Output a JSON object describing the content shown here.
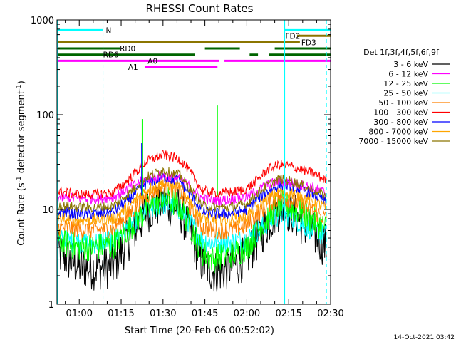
{
  "chart_data": {
    "type": "line",
    "title": "RHESSI Count Rates",
    "xlabel": "Start Time (20-Feb-06 00:52:02)",
    "ylabel": "Count Rate (s⁻¹ detector segment⁻¹)",
    "ylabel_parts": {
      "main": "Count Rate (s",
      "sup1": "-1",
      "mid": " detector segment",
      "sup2": "-1",
      "end": ")"
    },
    "y_scale": "log",
    "ylim": [
      1,
      1000
    ],
    "xlim": [
      52.03,
      150
    ],
    "x_ticks": [
      {
        "value": 60,
        "label": "01:00"
      },
      {
        "value": 75,
        "label": "01:15"
      },
      {
        "value": 90,
        "label": "01:30"
      },
      {
        "value": 105,
        "label": "01:45"
      },
      {
        "value": 120,
        "label": "02:00"
      },
      {
        "value": 135,
        "label": "02:15"
      },
      {
        "value": 150,
        "label": "02:30"
      }
    ],
    "y_ticks": [
      {
        "value": 1,
        "label": "1"
      },
      {
        "value": 10,
        "label": "10"
      },
      {
        "value": 100,
        "label": "100"
      },
      {
        "value": 1000,
        "label": "1000"
      }
    ],
    "legend_title": "Det 1f,3f,4f,5f,6f,9f",
    "legend_position": "right",
    "series": [
      {
        "name": "3 - 6 keV",
        "color": "#000000",
        "x": [
          52.03,
          60,
          66,
          72,
          78,
          84,
          90,
          96,
          100,
          104,
          108,
          112,
          116,
          120,
          124,
          128,
          132,
          136,
          140,
          144,
          148
        ],
        "values": [
          3.5,
          2.5,
          2.4,
          2.5,
          5,
          9.5,
          12,
          10,
          5.5,
          2.7,
          2.2,
          2.3,
          2.6,
          3.2,
          5,
          7.5,
          10.5,
          9.5,
          7,
          5.5,
          4.2
        ]
      },
      {
        "name": "6 - 12 keV",
        "color": "#ff00ff",
        "x": [
          52.03,
          60,
          66,
          72,
          78,
          84,
          90,
          96,
          100,
          104,
          108,
          112,
          116,
          120,
          124,
          128,
          132,
          136,
          140,
          144,
          148
        ],
        "values": [
          13.5,
          13,
          13,
          13.5,
          17,
          21,
          23,
          21,
          17,
          13,
          12.5,
          12.5,
          13,
          13.5,
          16,
          18.5,
          20,
          19,
          18,
          17,
          15
        ]
      },
      {
        "name": "12 - 25 keV",
        "color": "#00ff00",
        "x": [
          52.03,
          60,
          66,
          72,
          78,
          84,
          90,
          96,
          100,
          104,
          108,
          112,
          116,
          120,
          124,
          128,
          132,
          136,
          140,
          144,
          148
        ],
        "values": [
          4.5,
          4,
          4,
          4.2,
          6.5,
          10,
          13,
          11,
          6.5,
          3.5,
          3,
          3.2,
          3.5,
          4,
          6,
          8.5,
          11.5,
          10.5,
          9,
          7.5,
          6.5
        ]
      },
      {
        "name": "25 - 50 keV",
        "color": "#00ffff",
        "x": [
          52.03,
          60,
          66,
          72,
          78,
          84,
          90,
          96,
          100,
          104,
          108,
          112,
          116,
          120,
          124,
          128,
          132,
          136,
          140,
          144,
          148
        ],
        "values": [
          4.8,
          4.5,
          4.5,
          4.8,
          6.5,
          9.5,
          11.5,
          10,
          7,
          4.8,
          4.5,
          4.5,
          4.6,
          4.8,
          6,
          7.5,
          9,
          8.5,
          7,
          6,
          5.2
        ]
      },
      {
        "name": "50 - 100 keV",
        "color": "#ff8000",
        "x": [
          52.03,
          60,
          66,
          72,
          78,
          84,
          90,
          96,
          100,
          104,
          108,
          112,
          116,
          120,
          124,
          128,
          132,
          136,
          140,
          144,
          148
        ],
        "values": [
          6.5,
          6.2,
          6,
          6.3,
          9,
          14,
          17.5,
          15,
          10,
          6.5,
          6,
          6,
          6.2,
          6.8,
          9,
          11.5,
          13.5,
          12.5,
          11,
          9.5,
          8.2
        ]
      },
      {
        "name": "100 - 300 keV",
        "color": "#ff0000",
        "x": [
          52.03,
          60,
          66,
          72,
          78,
          84,
          90,
          96,
          100,
          104,
          108,
          112,
          116,
          120,
          124,
          128,
          132,
          136,
          140,
          144,
          148
        ],
        "values": [
          15.5,
          14.5,
          14.5,
          15,
          21,
          32,
          38,
          34,
          24,
          16,
          15,
          15,
          15.5,
          16.5,
          21,
          27,
          30,
          28.5,
          26,
          24,
          20.5
        ]
      },
      {
        "name": "300 - 800 keV",
        "color": "#0000ff",
        "x": [
          52.03,
          60,
          66,
          72,
          78,
          84,
          90,
          96,
          100,
          104,
          108,
          112,
          116,
          120,
          124,
          128,
          132,
          136,
          140,
          144,
          148
        ],
        "values": [
          9.5,
          9,
          9,
          9.3,
          13,
          19,
          22,
          20,
          14,
          9.5,
          9,
          9,
          9.3,
          10,
          13,
          16,
          18.5,
          18,
          16,
          14.5,
          12
        ]
      },
      {
        "name": "800 - 7000 keV",
        "color": "#ffa500",
        "x": [
          52.03,
          60,
          66,
          72,
          78,
          84,
          90,
          96,
          100,
          104,
          108,
          112,
          116,
          120,
          124,
          128,
          132,
          136,
          140,
          144,
          148
        ],
        "values": [
          8.2,
          7.8,
          7.8,
          8,
          11,
          16,
          19,
          17,
          12,
          8.2,
          7.8,
          7.8,
          8,
          8.5,
          11,
          13.5,
          15.5,
          15,
          13.5,
          12,
          10.5
        ]
      },
      {
        "name": "7000 - 15000 keV",
        "color": "#8b7500",
        "x": [
          52.03,
          60,
          66,
          72,
          78,
          84,
          90,
          96,
          100,
          104,
          108,
          112,
          116,
          120,
          124,
          128,
          132,
          136,
          140,
          144,
          148
        ],
        "values": [
          11,
          10.5,
          10.5,
          10.8,
          15,
          22,
          26,
          23,
          16,
          11,
          10.5,
          10.5,
          10.8,
          11.5,
          15,
          18.5,
          21,
          20,
          18,
          16,
          14
        ]
      }
    ],
    "spikes": [
      {
        "color": "#00ff00",
        "x": 82.5,
        "value": 90
      },
      {
        "color": "#0000ff",
        "x": 82.3,
        "value": 50
      },
      {
        "color": "#00ff00",
        "x": 109.5,
        "value": 125
      }
    ],
    "dashed_markers": [
      {
        "color": "#00ffff",
        "x": 68.5
      },
      {
        "color": "#00ffff",
        "x": 148.5
      }
    ],
    "solid_markers": [
      {
        "color": "#00ffff",
        "x": 52.3
      },
      {
        "color": "#00ffff",
        "x": 133.5
      }
    ],
    "flag_bars": [
      {
        "color": "#00ffff",
        "label": "N",
        "segments": [
          [
            52.03,
            68.5
          ],
          [
            133.5,
            150
          ]
        ],
        "value": 780
      },
      {
        "color": "#8b7500",
        "label": "FD2",
        "segments": [
          [
            138,
            150
          ]
        ],
        "value": 680
      },
      {
        "color": "#8b7500",
        "label": "FD3",
        "segments": [
          [
            52.03,
            139
          ]
        ],
        "value": 580
      },
      {
        "color": "#006400",
        "label": "RD0",
        "segments": [
          [
            52.03,
            74.5
          ],
          [
            105,
            117.5
          ],
          [
            130,
            150
          ]
        ],
        "value": 500
      },
      {
        "color": "#006400",
        "label": "RD6",
        "segments": [
          [
            52.03,
            101.5
          ],
          [
            121,
            124
          ],
          [
            128,
            150
          ]
        ],
        "value": 430
      },
      {
        "color": "#ff00ff",
        "label": "A0",
        "segments": [
          [
            52.03,
            110
          ],
          [
            112,
            150
          ]
        ],
        "value": 370
      },
      {
        "color": "#ff00ff",
        "label": "A1",
        "segments": [
          [
            83.5,
            109.5
          ]
        ],
        "value": 320
      }
    ],
    "flag_label_positions": [
      {
        "label": "N",
        "x": 69.5,
        "value": 780
      },
      {
        "label": "FD2",
        "x": 133.8,
        "value": 680
      },
      {
        "label": "FD3",
        "x": 139.5,
        "value": 580
      },
      {
        "label": "RD0",
        "x": 74.5,
        "value": 500
      },
      {
        "label": "RD6",
        "x": 68.5,
        "value": 430
      },
      {
        "label": "A0",
        "x": 84.5,
        "value": 370
      },
      {
        "label": "A1",
        "x": 77.5,
        "value": 320
      }
    ]
  },
  "timestamp": "14-Oct-2021 03:42"
}
